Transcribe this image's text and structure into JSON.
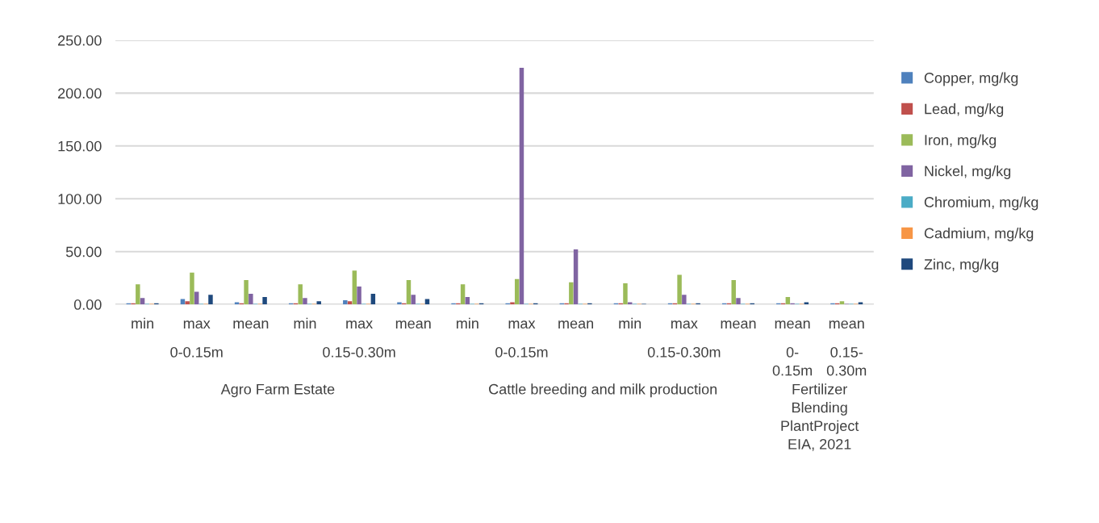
{
  "chart_data": {
    "type": "bar",
    "categories": [
      "min",
      "max",
      "mean",
      "min",
      "max",
      "mean",
      "min",
      "max",
      "mean",
      "min",
      "max",
      "mean",
      "mean",
      "mean"
    ],
    "series": [
      {
        "name": "Copper, mg/kg",
        "color": "#4f81bd",
        "values": [
          1,
          5,
          2,
          1,
          4,
          2,
          1,
          1,
          1,
          1,
          1,
          1,
          1,
          1
        ]
      },
      {
        "name": "Lead, mg/kg",
        "color": "#c0504d",
        "values": [
          1,
          3,
          1,
          1,
          3,
          1,
          1,
          2,
          1,
          1,
          1,
          1,
          1,
          1
        ]
      },
      {
        "name": "Iron, mg/kg",
        "color": "#9bbb59",
        "values": [
          19,
          30,
          23,
          19,
          32,
          23,
          19,
          24,
          21,
          20,
          28,
          23,
          7,
          3
        ]
      },
      {
        "name": "Nickel, mg/kg",
        "color": "#8064a2",
        "values": [
          6,
          12,
          10,
          6,
          17,
          9,
          7,
          224,
          52,
          2,
          9,
          6,
          1,
          0.5
        ]
      },
      {
        "name": "Chromium, mg/kg",
        "color": "#4bacc6",
        "values": [
          0.5,
          0.5,
          0.5,
          0.5,
          0.5,
          0.5,
          0.5,
          0.5,
          0.5,
          0.5,
          0.5,
          0.5,
          0.5,
          0.5
        ]
      },
      {
        "name": "Cadmium, mg/kg",
        "color": "#f79646",
        "values": [
          0.5,
          0.5,
          0.5,
          0.5,
          0.5,
          0.5,
          0.5,
          0.5,
          0.5,
          0.5,
          0.5,
          0.5,
          0.5,
          0.5
        ]
      },
      {
        "name": "Zinc, mg/kg",
        "color": "#1f497d",
        "values": [
          1,
          9,
          7,
          3,
          10,
          5,
          1,
          1,
          1,
          0.5,
          1,
          1,
          2,
          2
        ]
      }
    ],
    "ylim": [
      0,
      250
    ],
    "yticks": [
      {
        "value": 0,
        "label": "0.00"
      },
      {
        "value": 50,
        "label": "50.00"
      },
      {
        "value": 100,
        "label": "100.00"
      },
      {
        "value": 150,
        "label": "150.00"
      },
      {
        "value": 200,
        "label": "200.00"
      },
      {
        "value": 250,
        "label": "250.00"
      }
    ],
    "grid": "y",
    "legend": "right",
    "annotations": [
      "0-0.15m",
      "0.15-0.30m",
      "0-0.15m",
      "0.15-0.30m",
      "0-\n0.15m",
      "0.15-\n0.30m",
      "Agro Farm Estate",
      "Cattle breeding and milk production",
      "Fertilizer\nBlending\nPlantProject\nEIA, 2021"
    ]
  }
}
